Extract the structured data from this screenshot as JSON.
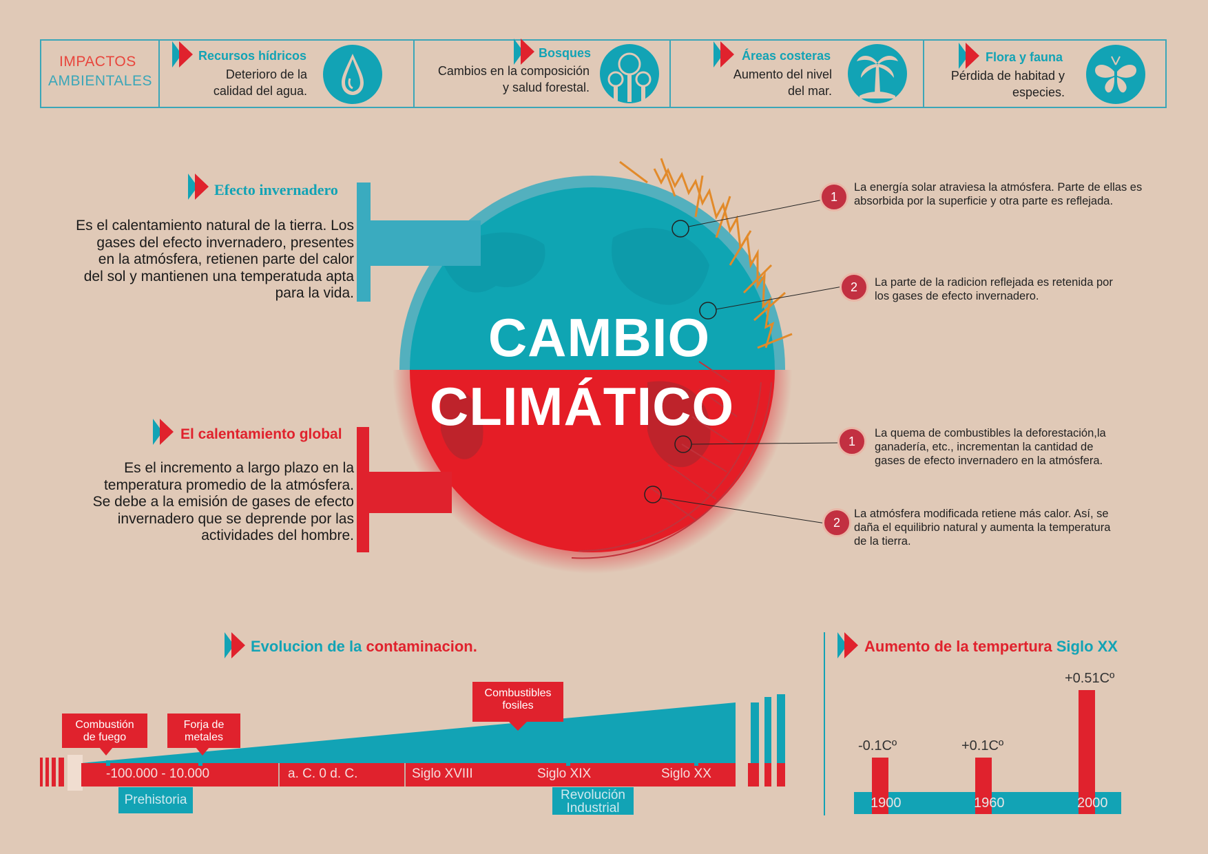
{
  "impacts": {
    "label_line1": "IMPACTOS",
    "label_line2": "AMBIENTALES",
    "items": [
      {
        "title": "Recursos hídricos",
        "text_line1": "Deterioro de la",
        "text_line2": "calidad del agua.",
        "icon": "water-drop-icon"
      },
      {
        "title": "Bosques",
        "text_line1": "Cambios en la composición",
        "text_line2": "y salud forestal.",
        "icon": "tree-icon"
      },
      {
        "title": "Áreas costeras",
        "text_line1": "Aumento del nivel",
        "text_line2": "del mar.",
        "icon": "palm-tree-icon"
      },
      {
        "title": "Flora y fauna",
        "text_line1": "Pérdida de habitad y",
        "text_line2": "especies.",
        "icon": "butterfly-icon"
      }
    ]
  },
  "title": {
    "line1": "CAMBIO",
    "line2": "CLIMÁTICO"
  },
  "greenhouse": {
    "heading": "Efecto invernadero",
    "lines": [
      "Es el calentamiento natural de la tierra. Los",
      "gases del efecto invernadero, presentes",
      "en la atmósfera, retienen parte del calor",
      "del sol y mantienen una temperatuda apta",
      "para la vida."
    ]
  },
  "warming": {
    "heading": "El calentamiento global",
    "lines": [
      "Es el incremento a largo plazo en la",
      "temperatura promedio de la atmósfera.",
      "Se debe a la emisión de gases de efecto",
      "invernadero que se deprende por las",
      "actividades del hombre."
    ]
  },
  "notes_top": [
    {
      "num": "1",
      "line1": "La energía solar atraviesa la atmósfera. Parte de ellas es",
      "line2": "absorbida por la superficie y otra parte es reflejada."
    },
    {
      "num": "2",
      "line1": "La parte de la radicion reflejada es retenida por",
      "line2": "los gases de efecto invernadero."
    }
  ],
  "notes_bottom": [
    {
      "num": "1",
      "line1": "La quema de combustibles la deforestación,la",
      "line2": "ganadería, etc., incrementan la cantidad de",
      "line3": "gases de efecto invernadero en la atmósfera."
    },
    {
      "num": "2",
      "line1": "La atmósfera modificada retiene más calor. Así, se",
      "line2": "daña el equilibrio natural y aumenta la temperatura",
      "line3": "de la tierra."
    }
  ],
  "evolution": {
    "heading_a": "Evolucion de la",
    "heading_b": "contaminacion.",
    "callouts": [
      {
        "line1": "Combustión",
        "line2": "de fuego"
      },
      {
        "line1": "Forja de",
        "line2": "metales"
      },
      {
        "line1": "Combustibles",
        "line2": "fosiles"
      }
    ],
    "periods": [
      "-100.000 - 10.000",
      "a. C. 0 d. C.",
      "Siglo XVIII",
      "Siglo XIX",
      "Siglo XX"
    ],
    "tags": [
      {
        "line1": "Prehistoria",
        "line2": ""
      },
      {
        "line1": "Revolución",
        "line2": "Industrial"
      }
    ]
  },
  "temperature": {
    "heading_a": "Aumento de la tempertura",
    "heading_b": "Siglo XX",
    "chart_data": {
      "type": "bar",
      "categories": [
        "1900",
        "1960",
        "2000"
      ],
      "value_labels": [
        "-0.1Cº",
        "+0.1Cº",
        "+0.51Cº"
      ],
      "values": [
        -0.1,
        0.1,
        0.51
      ]
    }
  },
  "colors": {
    "cyan": "#12a3b5",
    "red": "#e0222d",
    "background": "#e0c9b7"
  }
}
